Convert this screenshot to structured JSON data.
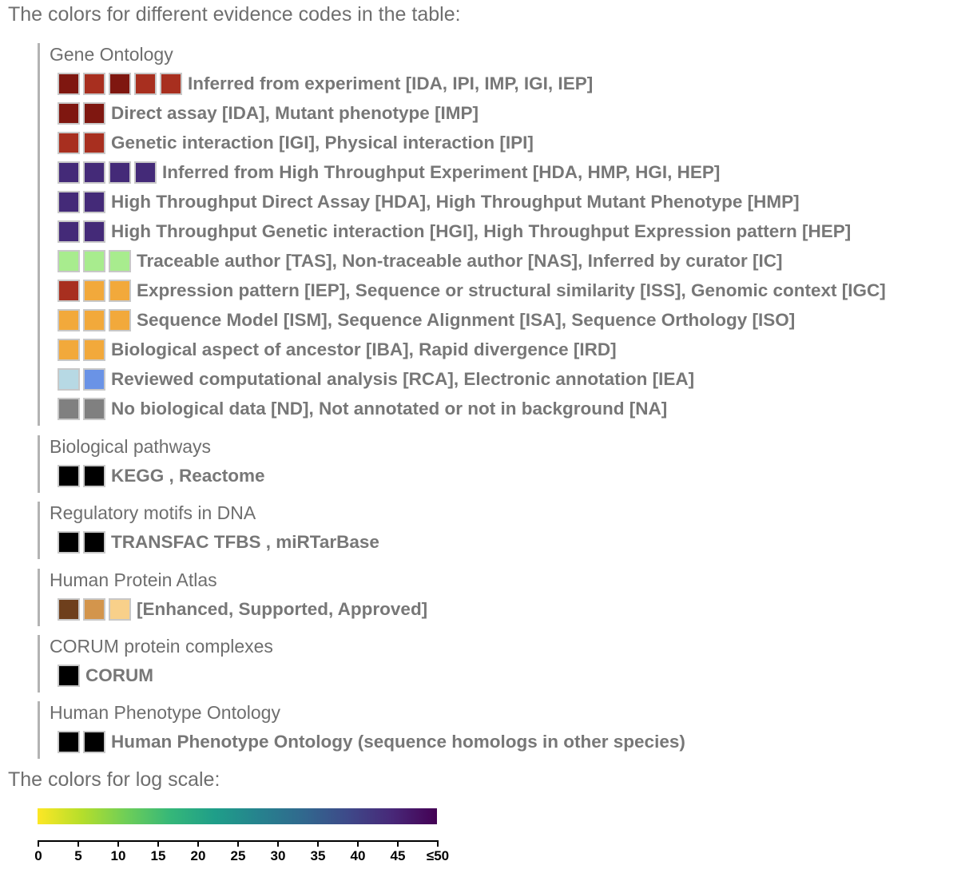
{
  "heading_evidence": "The colors for different evidence codes in the table:",
  "heading_log_scale": "The colors for log scale:",
  "groups": [
    {
      "title": "Gene Ontology",
      "rows": [
        {
          "swatches": [
            "#7f1710",
            "#a82f1f",
            "#7f1710",
            "#a82f1f",
            "#a82f1f"
          ],
          "label": "Inferred from experiment [IDA, IPI, IMP, IGI, IEP]"
        },
        {
          "swatches": [
            "#7f1710",
            "#7f1710"
          ],
          "label": "Direct assay [IDA], Mutant phenotype [IMP]"
        },
        {
          "swatches": [
            "#a82f1f",
            "#a82f1f"
          ],
          "label": "Genetic interaction [IGI], Physical interaction [IPI]"
        },
        {
          "swatches": [
            "#442a78",
            "#442a78",
            "#442a78",
            "#442a78"
          ],
          "label": "Inferred from High Throughput Experiment [HDA, HMP, HGI, HEP]"
        },
        {
          "swatches": [
            "#442a78",
            "#442a78"
          ],
          "label": "High Throughput Direct Assay [HDA], High Throughput Mutant Phenotype [HMP]"
        },
        {
          "swatches": [
            "#442a78",
            "#442a78"
          ],
          "label": "High Throughput Genetic interaction [HGI], High Throughput Expression pattern [HEP]"
        },
        {
          "swatches": [
            "#a8ec8e",
            "#a8ec8e",
            "#a8ec8e"
          ],
          "label": "Traceable author [TAS], Non-traceable author [NAS], Inferred by curator [IC]"
        },
        {
          "swatches": [
            "#a82f1f",
            "#f2a93b",
            "#f2a93b"
          ],
          "label": "Expression pattern [IEP], Sequence or structural similarity [ISS], Genomic context [IGC]"
        },
        {
          "swatches": [
            "#f2a93b",
            "#f2a93b",
            "#f2a93b"
          ],
          "label": "Sequence Model [ISM], Sequence Alignment [ISA], Sequence Orthology [ISO]"
        },
        {
          "swatches": [
            "#f2a93b",
            "#f2a93b"
          ],
          "label": "Biological aspect of ancestor [IBA], Rapid divergence [IRD]"
        },
        {
          "swatches": [
            "#b7d9e4",
            "#6a93e6"
          ],
          "label": "Reviewed computational analysis [RCA], Electronic annotation [IEA]"
        },
        {
          "swatches": [
            "#808080",
            "#808080"
          ],
          "label": "No biological data [ND], Not annotated or not in background [NA]"
        }
      ]
    },
    {
      "title": "Biological pathways",
      "rows": [
        {
          "swatches": [
            "#000000",
            "#000000"
          ],
          "label": "KEGG , Reactome"
        }
      ]
    },
    {
      "title": "Regulatory motifs in DNA",
      "rows": [
        {
          "swatches": [
            "#000000",
            "#000000"
          ],
          "label": "TRANSFAC TFBS , miRTarBase"
        }
      ]
    },
    {
      "title": "Human Protein Atlas",
      "rows": [
        {
          "swatches": [
            "#6e3f1c",
            "#d3954c",
            "#f8d08a"
          ],
          "label": "[Enhanced, Supported, Approved]"
        }
      ]
    },
    {
      "title": "CORUM protein complexes",
      "rows": [
        {
          "swatches": [
            "#000000"
          ],
          "label": "CORUM"
        }
      ]
    },
    {
      "title": "Human Phenotype Ontology",
      "rows": [
        {
          "swatches": [
            "#000000",
            "#000000"
          ],
          "label": "Human Phenotype Ontology (sequence homologs in other species)"
        }
      ]
    }
  ],
  "log_scale": {
    "tick_labels": [
      "0",
      "5",
      "10",
      "15",
      "20",
      "25",
      "30",
      "35",
      "40",
      "45",
      "≤50"
    ],
    "colors": [
      "#fde725",
      "#b5de2b",
      "#6ece58",
      "#35b779",
      "#1f9e89",
      "#26828e",
      "#31688e",
      "#3e4989",
      "#482878",
      "#440154"
    ]
  }
}
